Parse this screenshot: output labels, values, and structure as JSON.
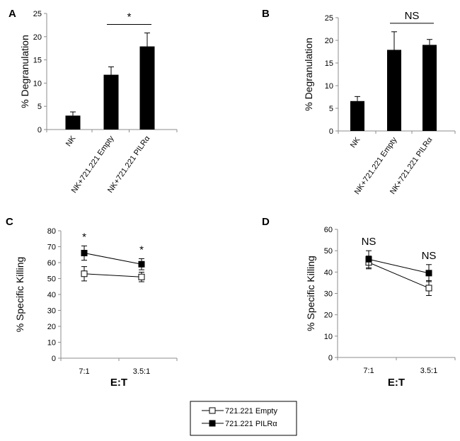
{
  "chart_data": [
    {
      "panel": "A",
      "type": "bar",
      "categories": [
        "NK",
        "NK+721.221 Empty",
        "NK+721.221 PILRα"
      ],
      "values": [
        3.0,
        11.8,
        17.9
      ],
      "errors": [
        0.8,
        1.7,
        2.9
      ],
      "ylabel": "% Degranulation",
      "ylim": [
        0,
        25
      ],
      "yticks": [
        0,
        5,
        10,
        15,
        20,
        25
      ],
      "significance": {
        "label": "*",
        "from": 1,
        "to": 2
      }
    },
    {
      "panel": "B",
      "type": "bar",
      "categories": [
        "NK",
        "NK+721.221 Empty",
        "NK+721.221 PILRα"
      ],
      "values": [
        6.6,
        17.9,
        19.0
      ],
      "errors": [
        1.0,
        4.0,
        1.2
      ],
      "ylabel": "% Degranulation",
      "ylim": [
        0,
        25
      ],
      "yticks": [
        0,
        5,
        10,
        15,
        20,
        25
      ],
      "significance": {
        "label": "NS",
        "from": 1,
        "to": 2
      }
    },
    {
      "panel": "C",
      "type": "line",
      "categories": [
        "7:1",
        "3.5:1"
      ],
      "series": [
        {
          "name": "721.221 Empty",
          "marker": "open-square",
          "values": [
            53,
            51
          ],
          "errors": [
            4.5,
            3.0
          ]
        },
        {
          "name": "721.221 PILRα",
          "marker": "filled-square",
          "values": [
            66,
            59
          ],
          "errors": [
            4.5,
            3.5
          ]
        }
      ],
      "ylabel": "% Specific Killing",
      "xlabel": "E:T",
      "ylim": [
        0,
        80
      ],
      "yticks": [
        0,
        10,
        20,
        30,
        40,
        50,
        60,
        70,
        80
      ],
      "annotations": [
        "*",
        "*"
      ]
    },
    {
      "panel": "D",
      "type": "line",
      "categories": [
        "7:1",
        "3.5:1"
      ],
      "series": [
        {
          "name": "721.221 Empty",
          "marker": "open-square",
          "values": [
            44.5,
            32.5
          ],
          "errors": [
            3.0,
            3.5
          ]
        },
        {
          "name": "721.221 PILRα",
          "marker": "filled-square",
          "values": [
            46,
            39.5
          ],
          "errors": [
            4.0,
            4.0
          ]
        }
      ],
      "ylabel": "% Specific Killing",
      "xlabel": "E:T",
      "ylim": [
        0,
        60
      ],
      "yticks": [
        0,
        10,
        20,
        30,
        40,
        50,
        60
      ],
      "annotations": [
        "NS",
        "NS"
      ]
    }
  ],
  "legend": [
    {
      "label": "721.221  Empty",
      "marker": "open-square"
    },
    {
      "label": "721.221  PILRα",
      "marker": "filled-square"
    }
  ],
  "colors": {
    "ink": "#000000",
    "axis": "#8c8c8c",
    "open_fill": "#ffffff"
  }
}
